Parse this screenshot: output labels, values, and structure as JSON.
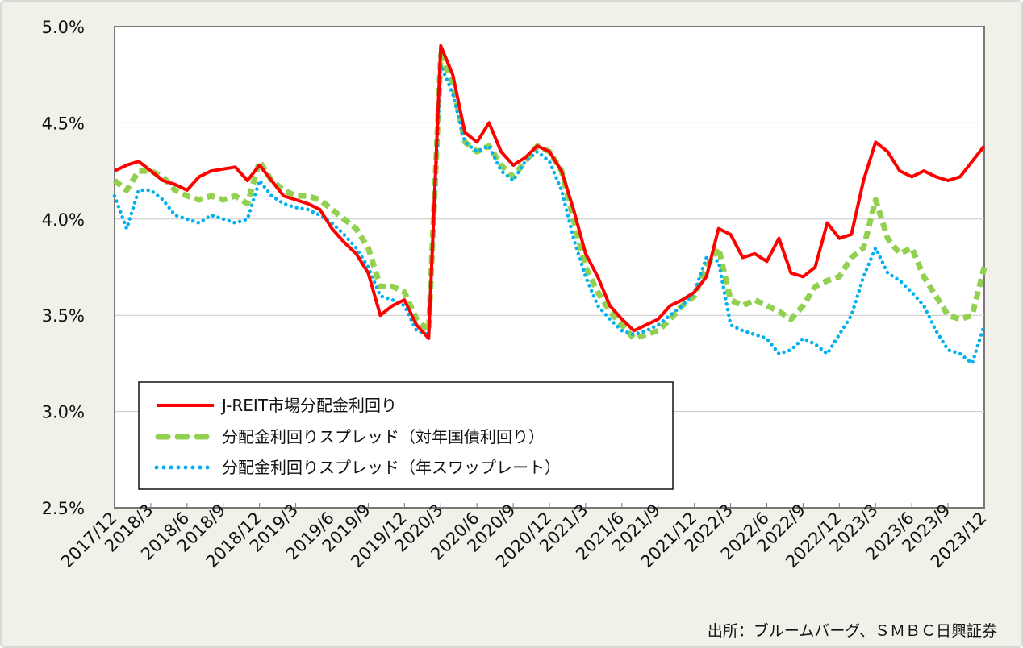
{
  "chart_data": {
    "type": "line",
    "title": "",
    "xlabel": "",
    "ylabel": "",
    "ylim": [
      2.5,
      5.0
    ],
    "yticks": [
      "2.5%",
      "3.0%",
      "3.5%",
      "4.0%",
      "4.5%",
      "5.0%"
    ],
    "ytick_values": [
      2.5,
      3.0,
      3.5,
      4.0,
      4.5,
      5.0
    ],
    "xticks": [
      "2017/12",
      "2018/3",
      "2018/6",
      "2018/9",
      "2018/12",
      "2019/3",
      "2019/6",
      "2019/9",
      "2019/12",
      "2020/3",
      "2020/6",
      "2020/9",
      "2020/12",
      "2021/3",
      "2021/6",
      "2021/9",
      "2021/12",
      "2022/3",
      "2022/6",
      "2022/9",
      "2022/12",
      "2023/3",
      "2023/6",
      "2023/9",
      "2023/12"
    ],
    "grid": "horizontal",
    "legend_position": "bottom-left",
    "x": [
      "2017/12",
      "2018/1",
      "2018/2",
      "2018/3",
      "2018/4",
      "2018/5",
      "2018/6",
      "2018/7",
      "2018/8",
      "2018/9",
      "2018/10",
      "2018/11",
      "2018/12",
      "2019/1",
      "2019/2",
      "2019/3",
      "2019/4",
      "2019/5",
      "2019/6",
      "2019/7",
      "2019/8",
      "2019/9",
      "2019/10",
      "2019/11",
      "2019/12",
      "2020/1",
      "2020/2",
      "2020/3",
      "2020/4",
      "2020/5",
      "2020/6",
      "2020/7",
      "2020/8",
      "2020/9",
      "2020/10",
      "2020/11",
      "2020/12",
      "2021/1",
      "2021/2",
      "2021/3",
      "2021/4",
      "2021/5",
      "2021/6",
      "2021/7",
      "2021/8",
      "2021/9",
      "2021/10",
      "2021/11",
      "2021/12",
      "2022/1",
      "2022/2",
      "2022/3",
      "2022/4",
      "2022/5",
      "2022/6",
      "2022/7",
      "2022/8",
      "2022/9",
      "2022/10",
      "2022/11",
      "2022/12",
      "2023/1",
      "2023/2",
      "2023/3",
      "2023/4",
      "2023/5",
      "2023/6",
      "2023/7",
      "2023/8",
      "2023/9",
      "2023/10",
      "2023/11",
      "2023/12"
    ],
    "series": [
      {
        "name": "J-REIT市場分配金利回り",
        "color": "#ff0000",
        "style": "solid",
        "values": [
          4.25,
          4.28,
          4.3,
          4.25,
          4.2,
          4.18,
          4.15,
          4.22,
          4.25,
          4.26,
          4.27,
          4.2,
          4.28,
          4.2,
          4.12,
          4.1,
          4.08,
          4.05,
          3.95,
          3.88,
          3.82,
          3.72,
          3.5,
          3.55,
          3.58,
          3.45,
          3.38,
          4.9,
          4.75,
          4.45,
          4.4,
          4.5,
          4.35,
          4.28,
          4.32,
          4.38,
          4.35,
          4.25,
          4.05,
          3.82,
          3.7,
          3.55,
          3.48,
          3.42,
          3.45,
          3.48,
          3.55,
          3.58,
          3.62,
          3.7,
          3.95,
          3.92,
          3.8,
          3.82,
          3.78,
          3.9,
          3.72,
          3.7,
          3.75,
          3.98,
          3.9,
          3.92,
          4.2,
          4.4,
          4.35,
          4.25,
          4.22,
          4.25,
          4.22,
          4.2,
          4.22,
          4.3,
          4.38
        ]
      },
      {
        "name": "分配金利回りスプレッド（対年国債利回り）",
        "color": "#92d050",
        "style": "dashed",
        "values": [
          4.2,
          4.15,
          4.25,
          4.25,
          4.22,
          4.15,
          4.12,
          4.1,
          4.12,
          4.1,
          4.12,
          4.08,
          4.3,
          4.2,
          4.15,
          4.12,
          4.12,
          4.1,
          4.05,
          4.0,
          3.95,
          3.85,
          3.65,
          3.65,
          3.62,
          3.48,
          3.42,
          4.85,
          4.7,
          4.4,
          4.35,
          4.38,
          4.28,
          4.22,
          4.3,
          4.38,
          4.35,
          4.25,
          4.0,
          3.75,
          3.62,
          3.52,
          3.45,
          3.38,
          3.4,
          3.42,
          3.48,
          3.55,
          3.6,
          3.75,
          3.85,
          3.58,
          3.55,
          3.58,
          3.55,
          3.52,
          3.48,
          3.55,
          3.65,
          3.68,
          3.7,
          3.8,
          3.85,
          4.1,
          3.9,
          3.82,
          3.85,
          3.7,
          3.6,
          3.5,
          3.48,
          3.5,
          3.75
        ]
      },
      {
        "name": "分配金利回りスプレッド（年スワップレート）",
        "color": "#00b0f0",
        "style": "dotted",
        "values": [
          4.12,
          3.95,
          4.15,
          4.15,
          4.1,
          4.02,
          4.0,
          3.98,
          4.02,
          4.0,
          3.98,
          4.0,
          4.2,
          4.12,
          4.08,
          4.06,
          4.05,
          4.02,
          3.98,
          3.92,
          3.85,
          3.75,
          3.6,
          3.58,
          3.55,
          3.42,
          3.4,
          4.8,
          4.65,
          4.4,
          4.35,
          4.38,
          4.25,
          4.2,
          4.3,
          4.35,
          4.3,
          4.15,
          3.9,
          3.7,
          3.55,
          3.48,
          3.42,
          3.4,
          3.42,
          3.45,
          3.5,
          3.55,
          3.62,
          3.8,
          3.78,
          3.45,
          3.42,
          3.4,
          3.38,
          3.3,
          3.32,
          3.38,
          3.35,
          3.3,
          3.4,
          3.5,
          3.7,
          3.85,
          3.72,
          3.68,
          3.62,
          3.55,
          3.42,
          3.32,
          3.3,
          3.25,
          3.45
        ]
      }
    ]
  },
  "source": "出所：ブルームバーグ、ＳＭＢＣ日興証券"
}
